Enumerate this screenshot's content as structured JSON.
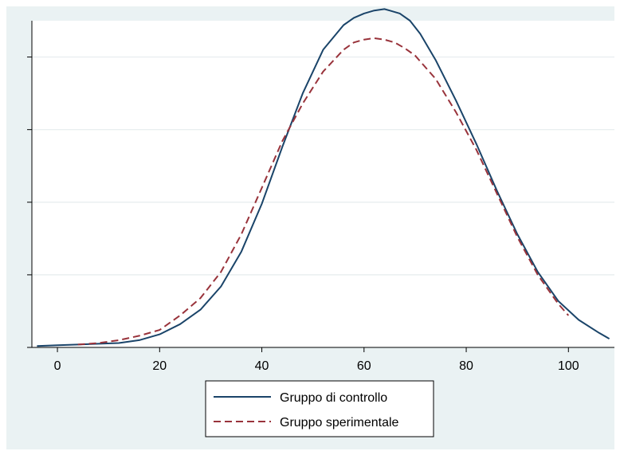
{
  "chart_data": {
    "type": "line",
    "title": "",
    "xlabel": "",
    "ylabel": "",
    "xlim": [
      -5,
      109
    ],
    "ylim": [
      0,
      0.0225
    ],
    "xticks": [
      0,
      20,
      40,
      60,
      80,
      100
    ],
    "x_tick_labels": [
      "0",
      "20",
      "40",
      "60",
      "80",
      "100"
    ],
    "yticks": [
      0,
      0.005,
      0.01,
      0.015,
      0.02
    ],
    "y_tick_labels": [],
    "grid": true,
    "legend_position": "bottom",
    "series": [
      {
        "name": "Gruppo di controllo",
        "color": "#1a4469",
        "style": "solid",
        "x": [
          -4,
          0,
          4,
          8,
          12,
          16,
          20,
          24,
          28,
          32,
          36,
          40,
          44,
          48,
          52,
          56,
          58,
          60,
          62,
          64,
          65,
          67,
          69,
          71,
          74,
          78,
          82,
          86,
          90,
          94,
          98,
          102,
          106,
          108
        ],
        "y": [
          0.0001,
          0.00015,
          0.0002,
          0.00025,
          0.0003,
          0.0005,
          0.0009,
          0.0016,
          0.0026,
          0.0042,
          0.0066,
          0.0099,
          0.0138,
          0.0175,
          0.0205,
          0.0222,
          0.0227,
          0.023,
          0.0232,
          0.0233,
          0.0232,
          0.023,
          0.0225,
          0.0216,
          0.0198,
          0.017,
          0.014,
          0.0108,
          0.0078,
          0.0052,
          0.0032,
          0.0019,
          0.001,
          0.0006
        ]
      },
      {
        "name": "Gruppo sperimentale",
        "color": "#99333b",
        "style": "dashed",
        "x": [
          4,
          8,
          12,
          16,
          20,
          24,
          28,
          32,
          36,
          40,
          44,
          48,
          52,
          56,
          58,
          60,
          62,
          64,
          66,
          68,
          70,
          74,
          78,
          82,
          86,
          90,
          94,
          98,
          100
        ],
        "y": [
          0.0002,
          0.0003,
          0.0005,
          0.0008,
          0.0012,
          0.0022,
          0.0034,
          0.0052,
          0.0078,
          0.011,
          0.0142,
          0.0168,
          0.019,
          0.0205,
          0.021,
          0.0212,
          0.0213,
          0.0212,
          0.021,
          0.0206,
          0.0201,
          0.0185,
          0.0162,
          0.0136,
          0.0106,
          0.0076,
          0.005,
          0.003,
          0.0022
        ]
      }
    ]
  }
}
